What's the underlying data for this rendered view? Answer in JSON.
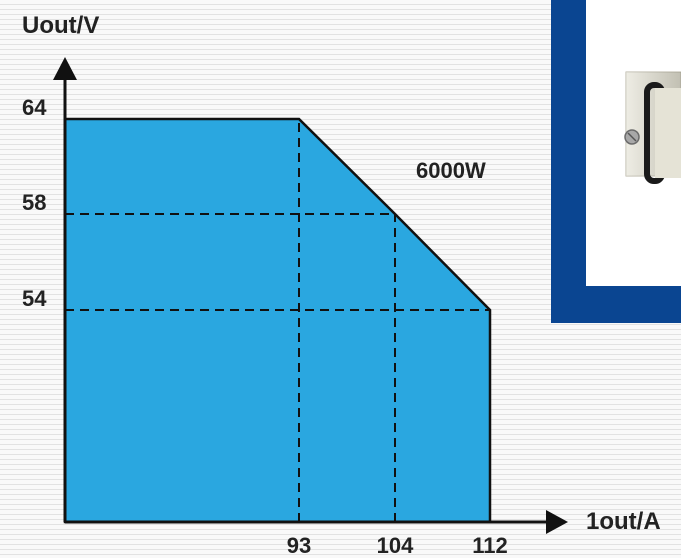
{
  "chart_data": {
    "type": "area",
    "xlabel": "1out/A",
    "ylabel": "Uout/V",
    "annotation": "6000W",
    "x_ticks": [
      93,
      104,
      112
    ],
    "y_ticks": [
      54,
      58,
      64
    ],
    "operating_envelope": [
      {
        "current": 0,
        "voltage": 64
      },
      {
        "current": 93,
        "voltage": 64
      },
      {
        "current": 104,
        "voltage": 58
      },
      {
        "current": 112,
        "voltage": 54
      },
      {
        "current": 112,
        "voltage": 0
      }
    ],
    "power_limit_watts": 6000,
    "grid": "dashed guide lines at tick values",
    "colors": {
      "area_fill": "#2aa7e0",
      "line": "#111111",
      "background_frame": "#0a4591"
    }
  }
}
